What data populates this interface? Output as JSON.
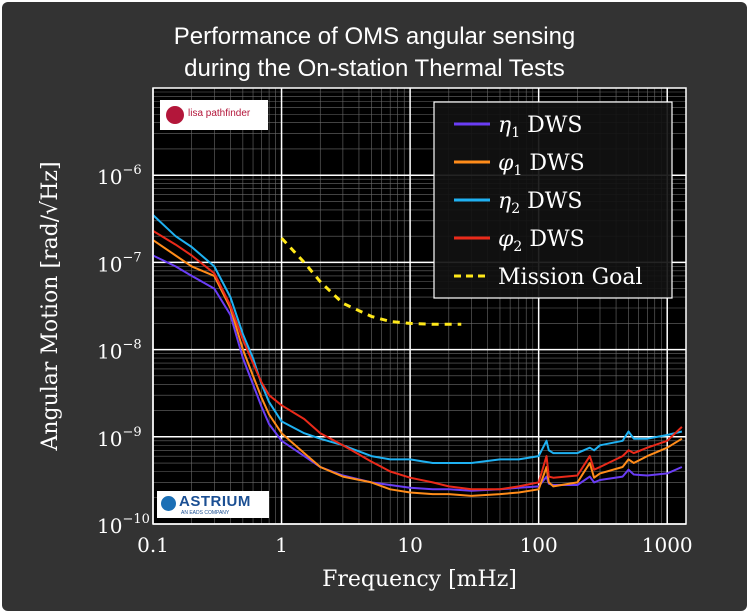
{
  "chart_data": {
    "type": "line",
    "title": "Performance of OMS angular sensing during the On-station Thermal Tests",
    "title_lines": [
      "Performance of OMS angular sensing",
      "during the On-station Thermal Tests"
    ],
    "xlabel": "Frequency [mHz]",
    "ylabel": "Angular Motion [rad/√Hz]",
    "x_scale": "log",
    "y_scale": "log",
    "xlim": [
      0.1,
      1400
    ],
    "ylim": [
      1e-10,
      1e-05
    ],
    "x_ticks": [
      {
        "value": 0.1,
        "label": "0.1"
      },
      {
        "value": 1,
        "label": "1"
      },
      {
        "value": 10,
        "label": "10"
      },
      {
        "value": 100,
        "label": "100"
      },
      {
        "value": 1000,
        "label": "1000"
      }
    ],
    "y_ticks": [
      {
        "value": 1e-10,
        "label": "10",
        "exp": "−10"
      },
      {
        "value": 1e-09,
        "label": "10",
        "exp": "−9"
      },
      {
        "value": 1e-08,
        "label": "10",
        "exp": "−8"
      },
      {
        "value": 1e-07,
        "label": "10",
        "exp": "−7"
      },
      {
        "value": 1e-06,
        "label": "10",
        "exp": "−6"
      }
    ],
    "grid": true,
    "legend_position": "top-right",
    "series": [
      {
        "name": "η₁ DWS",
        "symbol": "η",
        "sub": "1",
        "suffix": "DWS",
        "color": "#6a3df5",
        "style": "solid",
        "x": [
          0.1,
          0.15,
          0.2,
          0.3,
          0.4,
          0.5,
          0.6,
          0.7,
          0.8,
          1,
          1.5,
          2,
          3,
          5,
          7,
          10,
          15,
          20,
          30,
          50,
          70,
          100,
          115,
          120,
          130,
          200,
          250,
          270,
          300,
          450,
          500,
          550,
          700,
          1000,
          1300
        ],
        "y": [
          1.2e-07,
          9e-08,
          7e-08,
          5e-08,
          2.5e-08,
          8e-09,
          4e-09,
          2.2e-09,
          1.4e-09,
          9e-10,
          6e-10,
          4.5e-10,
          3.6e-10,
          3e-10,
          2.8e-10,
          2.6e-10,
          2.5e-10,
          2.5e-10,
          2.4e-10,
          2.5e-10,
          2.6e-10,
          2.7e-10,
          3.5e-10,
          2.9e-10,
          2.8e-10,
          2.8e-10,
          3.5e-10,
          3e-10,
          3.2e-10,
          3.5e-10,
          4.2e-10,
          3.7e-10,
          3.6e-10,
          3.8e-10,
          4.5e-10
        ]
      },
      {
        "name": "φ₁ DWS",
        "symbol": "φ",
        "sub": "1",
        "suffix": "DWS",
        "color": "#ff8c1a",
        "style": "solid",
        "x": [
          0.1,
          0.15,
          0.2,
          0.3,
          0.4,
          0.5,
          0.6,
          0.7,
          0.8,
          1,
          1.5,
          2,
          3,
          5,
          7,
          10,
          15,
          20,
          30,
          50,
          70,
          100,
          115,
          120,
          130,
          200,
          250,
          270,
          300,
          450,
          500,
          550,
          700,
          1000,
          1300
        ],
        "y": [
          1.8e-07,
          1.2e-07,
          9e-08,
          7e-08,
          3e-08,
          1e-08,
          5e-09,
          2.8e-09,
          1.8e-09,
          1.1e-09,
          6.5e-10,
          4.5e-10,
          3.5e-10,
          3e-10,
          2.5e-10,
          2.3e-10,
          2.2e-10,
          2.2e-10,
          2.1e-10,
          2.2e-10,
          2.3e-10,
          2.5e-10,
          4.5e-10,
          3e-10,
          2.7e-10,
          3e-10,
          5e-10,
          3.4e-10,
          3.8e-10,
          4.5e-10,
          5.5e-10,
          5e-10,
          6e-10,
          7.5e-10,
          9.5e-10
        ]
      },
      {
        "name": "η₂ DWS",
        "symbol": "η",
        "sub": "2",
        "suffix": "DWS",
        "color": "#1fb1f2",
        "style": "solid",
        "x": [
          0.1,
          0.15,
          0.2,
          0.3,
          0.4,
          0.5,
          0.6,
          0.7,
          0.8,
          1,
          1.5,
          2,
          3,
          5,
          7,
          10,
          15,
          20,
          30,
          50,
          70,
          100,
          115,
          120,
          130,
          200,
          250,
          270,
          300,
          450,
          500,
          550,
          700,
          1000,
          1300
        ],
        "y": [
          3.5e-07,
          2e-07,
          1.5e-07,
          9e-08,
          4e-08,
          1.5e-08,
          8e-09,
          4e-09,
          2.5e-09,
          1.5e-09,
          1.1e-09,
          9.5e-10,
          8e-10,
          6e-10,
          5.5e-10,
          5.5e-10,
          5e-10,
          5e-10,
          5e-10,
          5.5e-10,
          5.5e-10,
          6e-10,
          9e-10,
          7e-10,
          6.5e-10,
          6.5e-10,
          7.5e-10,
          7e-10,
          8e-10,
          9e-10,
          1.15e-09,
          9.5e-10,
          9.5e-10,
          1.05e-09,
          1.15e-09
        ]
      },
      {
        "name": "φ₂ DWS",
        "symbol": "φ",
        "sub": "2",
        "suffix": "DWS",
        "color": "#ea2a1a",
        "style": "solid",
        "x": [
          0.1,
          0.15,
          0.2,
          0.3,
          0.4,
          0.5,
          0.6,
          0.7,
          0.8,
          1,
          1.5,
          2,
          3,
          5,
          7,
          10,
          15,
          20,
          30,
          50,
          70,
          100,
          115,
          120,
          130,
          200,
          250,
          270,
          300,
          450,
          500,
          550,
          700,
          1000,
          1300
        ],
        "y": [
          2.3e-07,
          1.6e-07,
          1.2e-07,
          7.5e-08,
          3.2e-08,
          1.3e-08,
          7e-09,
          4.2e-09,
          3e-09,
          2.3e-09,
          1.6e-09,
          1.1e-09,
          8e-10,
          5.2e-10,
          4e-10,
          3.4e-10,
          3e-10,
          2.7e-10,
          2.5e-10,
          2.5e-10,
          2.7e-10,
          3e-10,
          6e-10,
          3.5e-10,
          3.4e-10,
          3.6e-10,
          6e-10,
          4.2e-10,
          4.5e-10,
          6e-10,
          7e-10,
          6.5e-10,
          7.5e-10,
          9e-10,
          1.3e-09
        ]
      },
      {
        "name": "Mission Goal",
        "color": "#ffe81a",
        "style": "dashed",
        "x": [
          1,
          1.5,
          2,
          3,
          5,
          7,
          10,
          15,
          20,
          25
        ],
        "y": [
          1.9e-07,
          1e-07,
          6e-08,
          3.4e-08,
          2.4e-08,
          2.1e-08,
          2e-08,
          1.95e-08,
          1.95e-08,
          1.95e-08
        ]
      }
    ]
  },
  "logos": {
    "lisa": {
      "text": "lisa pathfinder"
    },
    "astrium": {
      "text": "ASTRIUM",
      "tagline": "AN EADS COMPANY"
    }
  }
}
